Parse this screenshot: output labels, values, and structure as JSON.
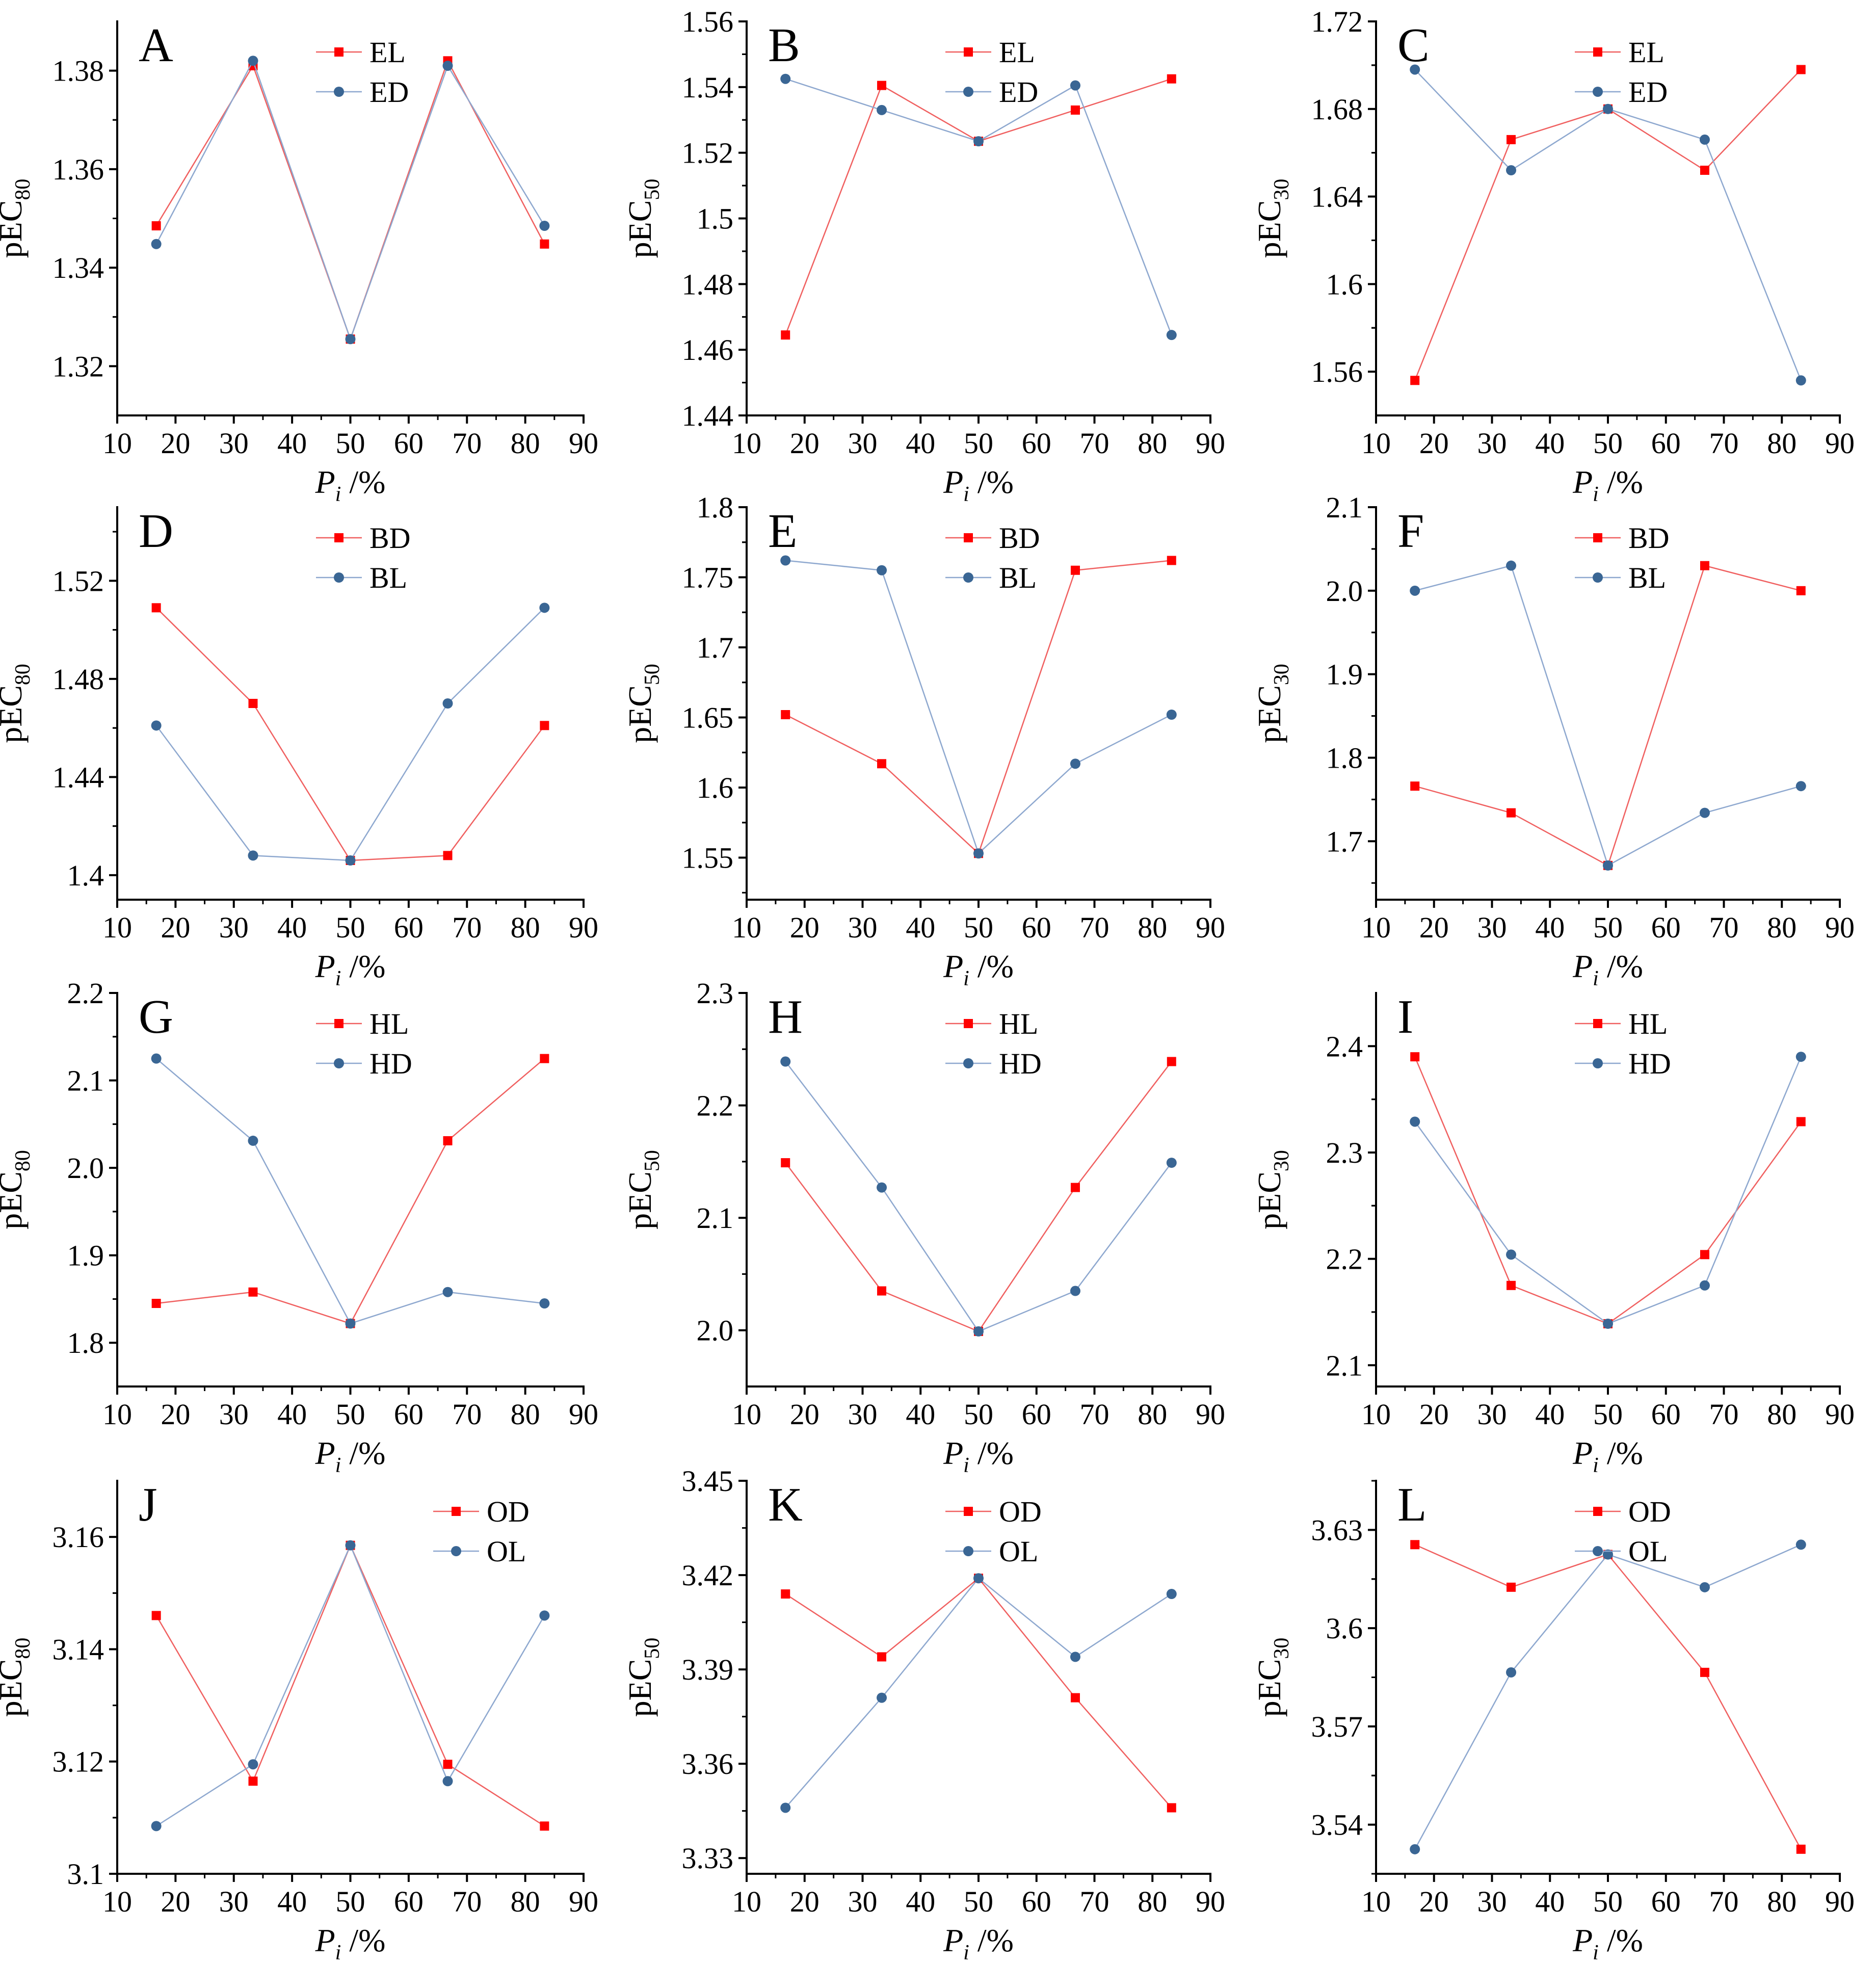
{
  "chart_data": [
    {
      "panel": "A",
      "type": "line",
      "ylabel": "pEC",
      "ysub": "80",
      "xlabel": "P",
      "xsub": "i",
      "xunit": " /%",
      "ylim": [
        1.31,
        1.39
      ],
      "yticks": [
        1.32,
        1.34,
        1.36,
        1.38
      ],
      "xlim": [
        10,
        90
      ],
      "xticks": [
        10,
        20,
        30,
        40,
        50,
        60,
        70,
        80,
        90
      ],
      "x": [
        16.7,
        33.3,
        50,
        66.7,
        83.3
      ],
      "legend_position": "top-center",
      "series": [
        {
          "name": "EL",
          "values": [
            1.3485,
            1.381,
            1.3255,
            1.382,
            1.3448
          ]
        },
        {
          "name": "ED",
          "values": [
            1.3448,
            1.382,
            1.3255,
            1.381,
            1.3485
          ]
        }
      ]
    },
    {
      "panel": "B",
      "type": "line",
      "ylabel": "pEC",
      "ysub": "50",
      "xlabel": "P",
      "xsub": "i",
      "xunit": " /%",
      "ylim": [
        1.44,
        1.56
      ],
      "yticks": [
        1.44,
        1.46,
        1.48,
        1.5,
        1.52,
        1.54,
        1.56
      ],
      "xlim": [
        10,
        90
      ],
      "xticks": [
        10,
        20,
        30,
        40,
        50,
        60,
        70,
        80,
        90
      ],
      "x": [
        16.7,
        33.3,
        50,
        66.7,
        83.3
      ],
      "legend_position": "top-center",
      "series": [
        {
          "name": "EL",
          "values": [
            1.4645,
            1.5405,
            1.5235,
            1.533,
            1.5425
          ]
        },
        {
          "name": "ED",
          "values": [
            1.5425,
            1.533,
            1.5235,
            1.5405,
            1.4645
          ]
        }
      ]
    },
    {
      "panel": "C",
      "type": "line",
      "ylabel": "pEC",
      "ysub": "30",
      "xlabel": "P",
      "xsub": "i",
      "xunit": " /%",
      "ylim": [
        1.54,
        1.72
      ],
      "yticks": [
        1.56,
        1.6,
        1.64,
        1.68,
        1.72
      ],
      "xlim": [
        10,
        90
      ],
      "xticks": [
        10,
        20,
        30,
        40,
        50,
        60,
        70,
        80,
        90
      ],
      "x": [
        16.7,
        33.3,
        50,
        66.7,
        83.3
      ],
      "legend_position": "top-center",
      "series": [
        {
          "name": "EL",
          "values": [
            1.556,
            1.666,
            1.68,
            1.652,
            1.698
          ]
        },
        {
          "name": "ED",
          "values": [
            1.698,
            1.652,
            1.68,
            1.666,
            1.556
          ]
        }
      ]
    },
    {
      "panel": "D",
      "type": "line",
      "ylabel": "pEC",
      "ysub": "80",
      "xlabel": "P",
      "xsub": "i",
      "xunit": " /%",
      "ylim": [
        1.39,
        1.55
      ],
      "yticks": [
        1.4,
        1.44,
        1.48,
        1.52
      ],
      "xlim": [
        10,
        90
      ],
      "xticks": [
        10,
        20,
        30,
        40,
        50,
        60,
        70,
        80,
        90
      ],
      "x": [
        16.7,
        33.3,
        50,
        66.7,
        83.3
      ],
      "legend_position": "top-center",
      "series": [
        {
          "name": "BD",
          "values": [
            1.509,
            1.47,
            1.406,
            1.408,
            1.461
          ]
        },
        {
          "name": "BL",
          "values": [
            1.461,
            1.408,
            1.406,
            1.47,
            1.509
          ]
        }
      ]
    },
    {
      "panel": "E",
      "type": "line",
      "ylabel": "pEC",
      "ysub": "50",
      "xlabel": "P",
      "xsub": "i",
      "xunit": " /%",
      "ylim": [
        1.52,
        1.8
      ],
      "yticks": [
        1.55,
        1.6,
        1.65,
        1.7,
        1.75,
        1.8
      ],
      "xlim": [
        10,
        90
      ],
      "xticks": [
        10,
        20,
        30,
        40,
        50,
        60,
        70,
        80,
        90
      ],
      "x": [
        16.7,
        33.3,
        50,
        66.7,
        83.3
      ],
      "legend_position": "top-center",
      "series": [
        {
          "name": "BD",
          "values": [
            1.652,
            1.617,
            1.553,
            1.755,
            1.762
          ]
        },
        {
          "name": "BL",
          "values": [
            1.762,
            1.755,
            1.553,
            1.617,
            1.652
          ]
        }
      ]
    },
    {
      "panel": "F",
      "type": "line",
      "ylabel": "pEC",
      "ysub": "30",
      "xlabel": "P",
      "xsub": "i",
      "xunit": " /%",
      "ylim": [
        1.63,
        2.1
      ],
      "yticks": [
        "1.7",
        "1.8",
        "1.9",
        "2.0",
        "2.1"
      ],
      "xlim": [
        10,
        90
      ],
      "xticks": [
        10,
        20,
        30,
        40,
        50,
        60,
        70,
        80,
        90
      ],
      "x": [
        16.7,
        33.3,
        50,
        66.7,
        83.3
      ],
      "legend_position": "top-center",
      "series": [
        {
          "name": "BD",
          "values": [
            1.766,
            1.734,
            1.671,
            2.03,
            2.0
          ]
        },
        {
          "name": "BL",
          "values": [
            2.0,
            2.03,
            1.671,
            1.734,
            1.766
          ]
        }
      ]
    },
    {
      "panel": "G",
      "type": "line",
      "ylabel": "pEC",
      "ysub": "80",
      "xlabel": "P",
      "xsub": "i",
      "xunit": " /%",
      "ylim": [
        1.75,
        2.2
      ],
      "yticks": [
        "1.8",
        "1.9",
        "2.0",
        "2.1",
        "2.2"
      ],
      "xlim": [
        10,
        90
      ],
      "xticks": [
        10,
        20,
        30,
        40,
        50,
        60,
        70,
        80,
        90
      ],
      "x": [
        16.7,
        33.3,
        50,
        66.7,
        83.3
      ],
      "legend_position": "top-center",
      "series": [
        {
          "name": "HL",
          "values": [
            1.845,
            1.858,
            1.822,
            2.031,
            2.125
          ]
        },
        {
          "name": "HD",
          "values": [
            2.125,
            2.031,
            1.822,
            1.858,
            1.845
          ]
        }
      ]
    },
    {
      "panel": "H",
      "type": "line",
      "ylabel": "pEC",
      "ysub": "50",
      "xlabel": "P",
      "xsub": "i",
      "xunit": " /%",
      "ylim": [
        1.95,
        2.3
      ],
      "yticks": [
        "2.0",
        "2.1",
        "2.2",
        "2.3"
      ],
      "xlim": [
        10,
        90
      ],
      "xticks": [
        10,
        20,
        30,
        40,
        50,
        60,
        70,
        80,
        90
      ],
      "x": [
        16.7,
        33.3,
        50,
        66.7,
        83.3
      ],
      "legend_position": "top-center",
      "series": [
        {
          "name": "HL",
          "values": [
            2.149,
            2.035,
            1.999,
            2.127,
            2.239
          ]
        },
        {
          "name": "HD",
          "values": [
            2.239,
            2.127,
            1.999,
            2.035,
            2.149
          ]
        }
      ]
    },
    {
      "panel": "I",
      "type": "line",
      "ylabel": "pEC",
      "ysub": "30",
      "xlabel": "P",
      "xsub": "i",
      "xunit": " /%",
      "ylim": [
        2.08,
        2.45
      ],
      "yticks": [
        "2.1",
        "2.2",
        "2.3",
        "2.4"
      ],
      "xlim": [
        10,
        90
      ],
      "xticks": [
        10,
        20,
        30,
        40,
        50,
        60,
        70,
        80,
        90
      ],
      "x": [
        16.7,
        33.3,
        50,
        66.7,
        83.3
      ],
      "legend_position": "top-center",
      "series": [
        {
          "name": "HL",
          "values": [
            2.39,
            2.175,
            2.139,
            2.204,
            2.329
          ]
        },
        {
          "name": "HD",
          "values": [
            2.329,
            2.204,
            2.139,
            2.175,
            2.39
          ]
        }
      ]
    },
    {
      "panel": "J",
      "type": "line",
      "ylabel": "pEC",
      "ysub": "80",
      "xlabel": "P",
      "xsub": "i",
      "xunit": " /%",
      "ylim": [
        3.1,
        3.17
      ],
      "yticks": [
        3.1,
        3.12,
        3.14,
        3.16
      ],
      "xlim": [
        10,
        90
      ],
      "xticks": [
        10,
        20,
        30,
        40,
        50,
        60,
        70,
        80,
        90
      ],
      "x": [
        16.7,
        33.3,
        50,
        66.7,
        83.3
      ],
      "legend_position": "top-right",
      "series": [
        {
          "name": "OD",
          "values": [
            3.146,
            3.1165,
            3.1585,
            3.1195,
            3.1085
          ]
        },
        {
          "name": "OL",
          "values": [
            3.1085,
            3.1195,
            3.1585,
            3.1165,
            3.146
          ]
        }
      ]
    },
    {
      "panel": "K",
      "type": "line",
      "ylabel": "pEC",
      "ysub": "50",
      "xlabel": "P",
      "xsub": "i",
      "xunit": " /%",
      "ylim": [
        3.325,
        3.45
      ],
      "yticks": [
        3.33,
        3.36,
        3.39,
        3.42,
        3.45
      ],
      "xlim": [
        10,
        90
      ],
      "xticks": [
        10,
        20,
        30,
        40,
        50,
        60,
        70,
        80,
        90
      ],
      "x": [
        16.7,
        33.3,
        50,
        66.7,
        83.3
      ],
      "legend_position": "top-center",
      "series": [
        {
          "name": "OD",
          "values": [
            3.414,
            3.394,
            3.419,
            3.381,
            3.346
          ]
        },
        {
          "name": "OL",
          "values": [
            3.346,
            3.381,
            3.419,
            3.394,
            3.414
          ]
        }
      ]
    },
    {
      "panel": "L",
      "type": "line",
      "ylabel": "pEC",
      "ysub": "30",
      "xlabel": "P",
      "xsub": "i",
      "xunit": " /%",
      "ylim": [
        3.525,
        3.645
      ],
      "yticks": [
        3.54,
        3.57,
        3.6,
        3.63
      ],
      "xlim": [
        10,
        90
      ],
      "xticks": [
        10,
        20,
        30,
        40,
        50,
        60,
        70,
        80,
        90
      ],
      "x": [
        16.7,
        33.3,
        50,
        66.7,
        83.3
      ],
      "legend_position": "top-center",
      "series": [
        {
          "name": "OD",
          "values": [
            3.6255,
            3.6125,
            3.6225,
            3.5865,
            3.5325
          ]
        },
        {
          "name": "OL",
          "values": [
            3.5325,
            3.5865,
            3.6225,
            3.6125,
            3.6255
          ]
        }
      ]
    }
  ],
  "colors": {
    "series1": "#ff0000",
    "series1_line": "#f06060",
    "series2": "#3a6694",
    "series2_line": "#8ea8cf"
  }
}
